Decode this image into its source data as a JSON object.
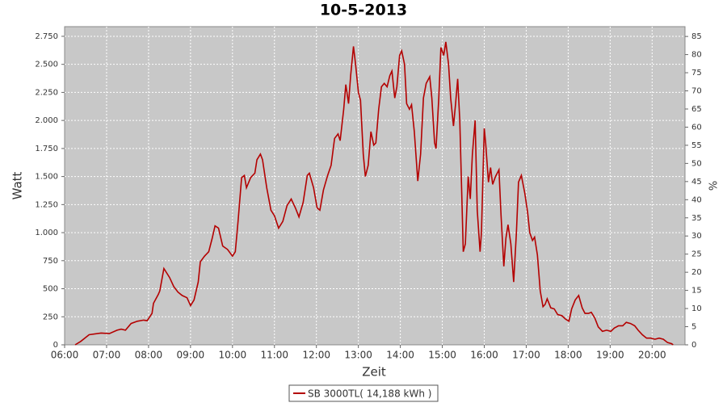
{
  "chart_data": {
    "type": "line",
    "title": "10-5-2013",
    "x_label": "Zeit",
    "y_label": "Watt",
    "y2_label": "%",
    "x": [
      "06:15",
      "06:23",
      "06:35",
      "06:52",
      "07:04",
      "07:15",
      "07:21",
      "07:27",
      "07:35",
      "07:44",
      "07:53",
      "07:58",
      "08:05",
      "08:07",
      "08:14",
      "08:16",
      "08:22",
      "08:30",
      "08:36",
      "08:42",
      "08:48",
      "08:55",
      "09:00",
      "09:05",
      "09:11",
      "09:14",
      "09:20",
      "09:26",
      "09:31",
      "09:35",
      "09:40",
      "09:46",
      "09:53",
      "10:00",
      "10:04",
      "10:08",
      "10:13",
      "10:17",
      "10:20",
      "10:26",
      "10:32",
      "10:35",
      "10:40",
      "10:43",
      "10:49",
      "10:55",
      "11:00",
      "11:06",
      "11:12",
      "11:18",
      "11:24",
      "11:30",
      "11:35",
      "11:41",
      "11:47",
      "11:50",
      "11:56",
      "12:01",
      "12:05",
      "12:10",
      "12:16",
      "12:21",
      "12:26",
      "12:31",
      "12:34",
      "12:39",
      "12:42",
      "12:46",
      "12:49",
      "12:53",
      "12:56",
      "13:00",
      "13:03",
      "13:07",
      "13:10",
      "13:14",
      "13:18",
      "13:22",
      "13:25",
      "13:29",
      "13:33",
      "13:37",
      "13:41",
      "13:45",
      "13:48",
      "13:52",
      "13:55",
      "13:59",
      "14:02",
      "14:06",
      "14:09",
      "14:13",
      "14:16",
      "14:20",
      "14:25",
      "14:29",
      "14:33",
      "14:37",
      "14:42",
      "14:45",
      "14:49",
      "14:51",
      "14:55",
      "14:58",
      "15:02",
      "15:05",
      "15:09",
      "15:12",
      "15:16",
      "15:19",
      "15:22",
      "15:25",
      "15:28",
      "15:30",
      "15:33",
      "15:37",
      "15:40",
      "15:43",
      "15:47",
      "15:50",
      "15:54",
      "15:56",
      "16:00",
      "16:02",
      "16:06",
      "16:09",
      "16:12",
      "16:16",
      "16:21",
      "16:24",
      "16:28",
      "16:31",
      "16:34",
      "16:38",
      "16:42",
      "16:46",
      "16:49",
      "16:53",
      "16:58",
      "17:02",
      "17:05",
      "17:09",
      "17:12",
      "17:16",
      "17:20",
      "17:24",
      "17:27",
      "17:30",
      "17:35",
      "17:40",
      "17:45",
      "17:51",
      "17:56",
      "18:01",
      "18:05",
      "18:10",
      "18:15",
      "18:20",
      "18:24",
      "18:29",
      "18:33",
      "18:38",
      "18:43",
      "18:49",
      "18:55",
      "19:01",
      "19:06",
      "19:12",
      "19:18",
      "19:23",
      "19:29",
      "19:35",
      "19:40",
      "19:46",
      "19:52",
      "19:58",
      "20:04",
      "20:10",
      "20:16",
      "20:22",
      "20:28",
      "20:30"
    ],
    "series": [
      {
        "name": "SB 3000TL( 14,188 kWh )",
        "color": "#b40000",
        "values": [
          0,
          30,
          90,
          105,
          100,
          130,
          140,
          130,
          190,
          210,
          220,
          215,
          280,
          370,
          450,
          480,
          680,
          600,
          520,
          470,
          440,
          420,
          350,
          400,
          560,
          740,
          790,
          830,
          950,
          1060,
          1040,
          880,
          850,
          790,
          830,
          1100,
          1490,
          1510,
          1400,
          1490,
          1530,
          1650,
          1700,
          1650,
          1400,
          1200,
          1150,
          1040,
          1100,
          1240,
          1300,
          1220,
          1140,
          1270,
          1510,
          1530,
          1400,
          1220,
          1200,
          1380,
          1510,
          1600,
          1840,
          1880,
          1820,
          2100,
          2320,
          2150,
          2400,
          2660,
          2500,
          2250,
          2180,
          1700,
          1500,
          1600,
          1900,
          1780,
          1800,
          2100,
          2300,
          2330,
          2300,
          2400,
          2440,
          2200,
          2300,
          2580,
          2620,
          2500,
          2150,
          2100,
          2140,
          1900,
          1460,
          1700,
          2200,
          2330,
          2390,
          2200,
          1800,
          1750,
          2200,
          2650,
          2580,
          2700,
          2500,
          2200,
          1950,
          2150,
          2370,
          2000,
          1300,
          830,
          900,
          1500,
          1300,
          1700,
          2000,
          1200,
          830,
          1000,
          1930,
          1800,
          1450,
          1580,
          1430,
          1500,
          1560,
          1150,
          700,
          950,
          1070,
          900,
          560,
          1000,
          1450,
          1510,
          1350,
          1180,
          1000,
          930,
          960,
          800,
          480,
          340,
          360,
          410,
          330,
          320,
          270,
          260,
          230,
          210,
          320,
          400,
          440,
          330,
          280,
          280,
          290,
          240,
          160,
          120,
          130,
          120,
          150,
          170,
          170,
          200,
          190,
          170,
          130,
          90,
          60,
          60,
          50,
          60,
          50,
          20,
          10,
          0
        ]
      }
    ],
    "xlim": [
      "06:00",
      "20:47"
    ],
    "xticks": [
      "06:00",
      "07:00",
      "08:00",
      "09:00",
      "10:00",
      "11:00",
      "12:00",
      "13:00",
      "14:00",
      "15:00",
      "16:00",
      "17:00",
      "18:00",
      "19:00",
      "20:00"
    ],
    "ylim": [
      0,
      2836
    ],
    "yticks": [
      0,
      250,
      500,
      750,
      {
        "value": 1000,
        "label": "1.000"
      },
      {
        "value": 1250,
        "label": "1.250"
      },
      {
        "value": 1500,
        "label": "1.500"
      },
      {
        "value": 1750,
        "label": "1.750"
      },
      {
        "value": 2000,
        "label": "2.000"
      },
      {
        "value": 2250,
        "label": "2.250"
      },
      {
        "value": 2500,
        "label": "2.500"
      },
      {
        "value": 2750,
        "label": "2.750"
      }
    ],
    "y2lim": [
      0,
      87.7
    ],
    "y2ticks": [
      0,
      5,
      10,
      15,
      20,
      25,
      30,
      35,
      40,
      45,
      50,
      55,
      60,
      65,
      70,
      75,
      80,
      85
    ],
    "grid": true
  }
}
